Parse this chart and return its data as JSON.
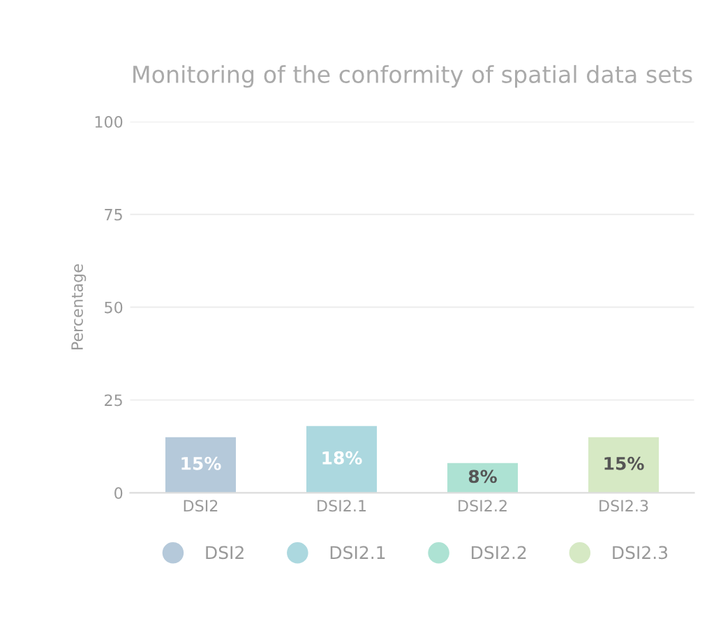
{
  "chart_data": {
    "type": "bar",
    "title": "Monitoring of the conformity of spatial data sets",
    "ylabel": "Percentage",
    "categories": [
      "DSI2",
      "DSI2.1",
      "DSI2.2",
      "DSI2.3"
    ],
    "series": [
      {
        "name": "DSI2",
        "color": "#b5c9da",
        "values": [
          15,
          null,
          null,
          null
        ],
        "value_labels": [
          "15%",
          null,
          null,
          null
        ]
      },
      {
        "name": "DSI2.1",
        "color": "#acd8df",
        "values": [
          null,
          18,
          null,
          null
        ],
        "value_labels": [
          null,
          "18%",
          null,
          null
        ]
      },
      {
        "name": "DSI2.2",
        "color": "#ade2d3",
        "values": [
          null,
          null,
          8,
          null
        ],
        "value_labels": [
          null,
          null,
          "8%",
          null
        ]
      },
      {
        "name": "DSI2.3",
        "color": "#d6e9c4",
        "values": [
          null,
          null,
          null,
          15
        ],
        "value_labels": [
          null,
          null,
          null,
          "15%"
        ]
      }
    ],
    "ylim": [
      0,
      100
    ],
    "yticks": [
      0,
      25,
      50,
      75,
      100
    ],
    "grid": "y",
    "legend": "bottom",
    "marker": "circle"
  }
}
